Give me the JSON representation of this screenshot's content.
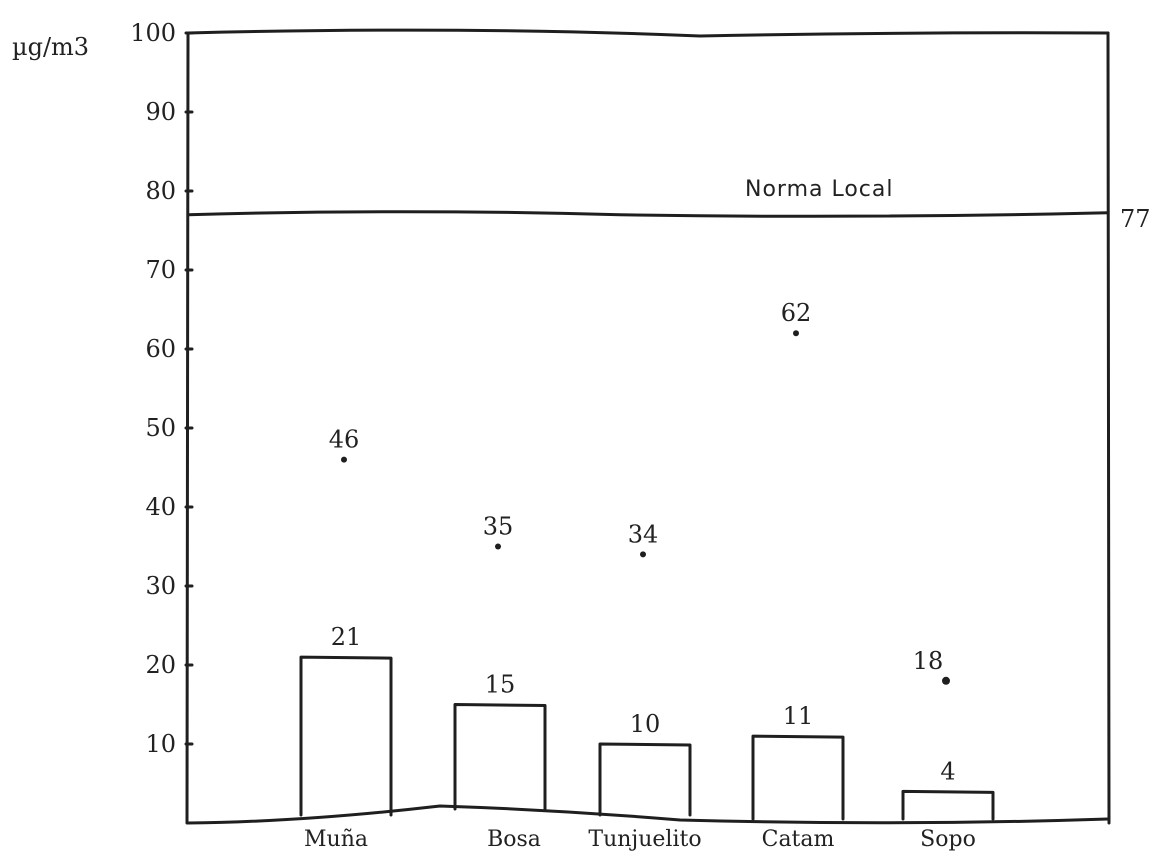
{
  "chart_data": {
    "type": "bar",
    "ylabel": "µg/m3",
    "ylim": [
      0,
      100
    ],
    "yticks": [
      10,
      20,
      30,
      40,
      50,
      60,
      70,
      80,
      90,
      100
    ],
    "categories": [
      "Muña",
      "Bosa",
      "Tunjuelito",
      "Catam",
      "Sopo"
    ],
    "series": [
      {
        "values": [
          21,
          15,
          10,
          11,
          4
        ],
        "data_labels": [
          "21",
          "15",
          "10",
          "11",
          "4"
        ]
      },
      {
        "values": [
          46,
          35,
          34,
          62,
          18
        ],
        "data_labels": [
          "46",
          "35",
          "34",
          "62",
          "18"
        ]
      }
    ],
    "reference_line": {
      "label": "Norma Local",
      "value": 77,
      "value_label": "77"
    },
    "grid": false,
    "legend": "none"
  }
}
